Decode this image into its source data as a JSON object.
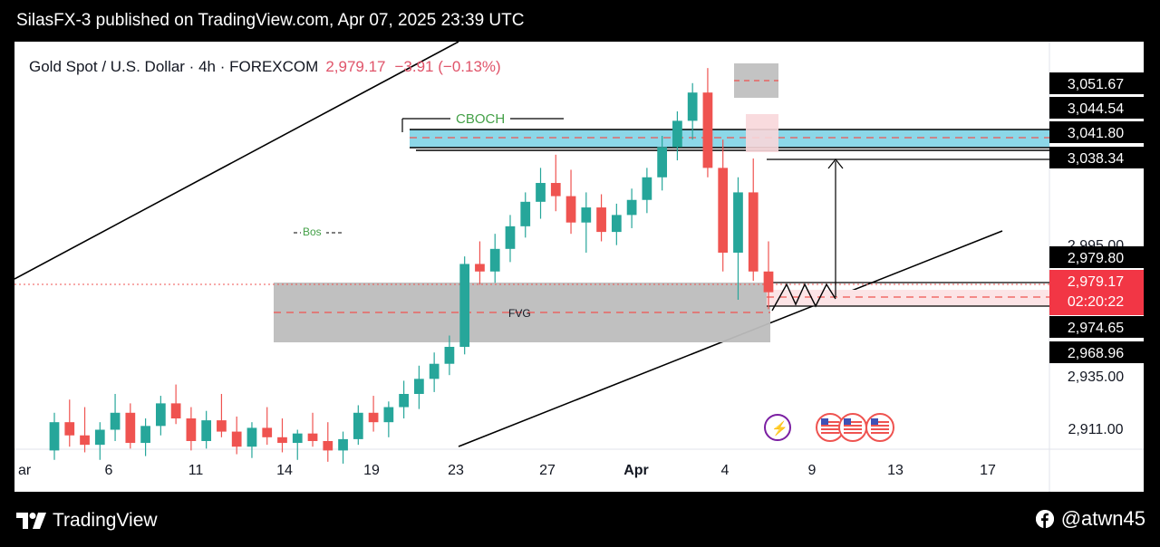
{
  "header": {
    "title": "SilasFX-3 published on TradingView.com, Apr 07, 2025 23:39 UTC"
  },
  "symbol": {
    "name": "Gold Spot / U.S. Dollar · 4h · FOREXCOM",
    "price": "2,979.17",
    "change": "−3.91 (−0.13%)"
  },
  "annotations": {
    "cboch": "CBOCH",
    "bos": "Bos",
    "fvg": "FVG"
  },
  "footer": {
    "brand": "TradingView",
    "handle": "@atwn45"
  },
  "colors": {
    "up": "#26a69a",
    "down": "#ef5350",
    "zone_blue": "#7fd3e6",
    "fvg_gray": "#bdbdbd",
    "label_bg": "#000000",
    "current_bg": "#f23645"
  },
  "chart_data": {
    "type": "candlestick",
    "symbol": "XAUUSD",
    "timeframe": "4h",
    "x_tick_labels": [
      "ar",
      "6",
      "11",
      "14",
      "19",
      "23",
      "27",
      "Apr",
      "4",
      "9",
      "13",
      "17"
    ],
    "y_tick_labels": [
      "3,051.67",
      "3,044.54",
      "3,041.80",
      "3,038.34",
      "2,995.00",
      "2,979.80",
      "2,979.17",
      "2,974.65",
      "2,968.96",
      "2,935.00",
      "2,911.00"
    ],
    "price_labels": [
      {
        "value": "3,051.67",
        "style": "black"
      },
      {
        "value": "3,044.54",
        "style": "black"
      },
      {
        "value": "3,041.80",
        "style": "black"
      },
      {
        "value": "3,038.34",
        "style": "black"
      },
      {
        "value": "2,979.80",
        "style": "black"
      },
      {
        "value": "2,979.17",
        "sub": "02:20:22",
        "style": "red"
      },
      {
        "value": "2,974.65",
        "style": "black"
      },
      {
        "value": "2,968.96",
        "style": "black"
      }
    ],
    "axis_plain_labels": [
      "2,995.00",
      "2,935.00",
      "2,911.00"
    ],
    "last_price": 2979.17,
    "countdown": "02:20:22",
    "zones": [
      {
        "name": "CBOCH supply zone",
        "low": 3038.34,
        "high": 3044.54
      },
      {
        "name": "FVG",
        "low": 2968.96,
        "high": 2991.5
      },
      {
        "name": "target zone",
        "low": 2974.65,
        "high": 2979.8
      }
    ],
    "candles_ohlc_approx": [
      [
        2895,
        2915,
        2890,
        2910
      ],
      [
        2910,
        2922,
        2897,
        2903
      ],
      [
        2903,
        2918,
        2894,
        2898
      ],
      [
        2898,
        2910,
        2890,
        2906
      ],
      [
        2906,
        2925,
        2900,
        2915
      ],
      [
        2915,
        2920,
        2896,
        2899
      ],
      [
        2899,
        2912,
        2892,
        2908
      ],
      [
        2908,
        2924,
        2903,
        2920
      ],
      [
        2920,
        2930,
        2909,
        2912
      ],
      [
        2912,
        2918,
        2895,
        2900
      ],
      [
        2900,
        2916,
        2896,
        2911
      ],
      [
        2911,
        2925,
        2902,
        2905
      ],
      [
        2905,
        2913,
        2893,
        2897
      ],
      [
        2897,
        2910,
        2891,
        2907
      ],
      [
        2907,
        2918,
        2898,
        2902
      ],
      [
        2902,
        2912,
        2894,
        2899
      ],
      [
        2899,
        2906,
        2890,
        2904
      ],
      [
        2904,
        2915,
        2897,
        2900
      ],
      [
        2900,
        2910,
        2889,
        2895
      ],
      [
        2895,
        2905,
        2888,
        2901
      ],
      [
        2901,
        2919,
        2898,
        2915
      ],
      [
        2915,
        2924,
        2905,
        2910
      ],
      [
        2910,
        2921,
        2902,
        2918
      ],
      [
        2918,
        2932,
        2912,
        2925
      ],
      [
        2925,
        2940,
        2917,
        2933
      ],
      [
        2933,
        2947,
        2926,
        2941
      ],
      [
        2941,
        2956,
        2935,
        2950
      ],
      [
        2950,
        2998,
        2946,
        2994
      ],
      [
        2994,
        3006,
        2983,
        2990
      ],
      [
        2990,
        3010,
        2984,
        3002
      ],
      [
        3002,
        3020,
        2995,
        3014
      ],
      [
        3014,
        3032,
        3008,
        3027
      ],
      [
        3027,
        3045,
        3018,
        3037
      ],
      [
        3037,
        3052,
        3022,
        3030
      ],
      [
        3030,
        3044,
        3010,
        3016
      ],
      [
        3016,
        3032,
        3000,
        3024
      ],
      [
        3024,
        3031,
        3006,
        3011
      ],
      [
        3011,
        3026,
        3004,
        3020
      ],
      [
        3020,
        3034,
        3013,
        3028
      ],
      [
        3028,
        3045,
        3021,
        3040
      ],
      [
        3040,
        3062,
        3033,
        3056
      ],
      [
        3056,
        3075,
        3049,
        3070
      ],
      [
        3070,
        3090,
        3060,
        3085
      ],
      [
        3085,
        3098,
        3040,
        3045
      ],
      [
        3045,
        3060,
        2990,
        3000
      ],
      [
        3000,
        3040,
        2975,
        3032
      ],
      [
        3032,
        3050,
        2985,
        2990
      ],
      [
        2990,
        3006,
        2970,
        2979
      ]
    ]
  }
}
